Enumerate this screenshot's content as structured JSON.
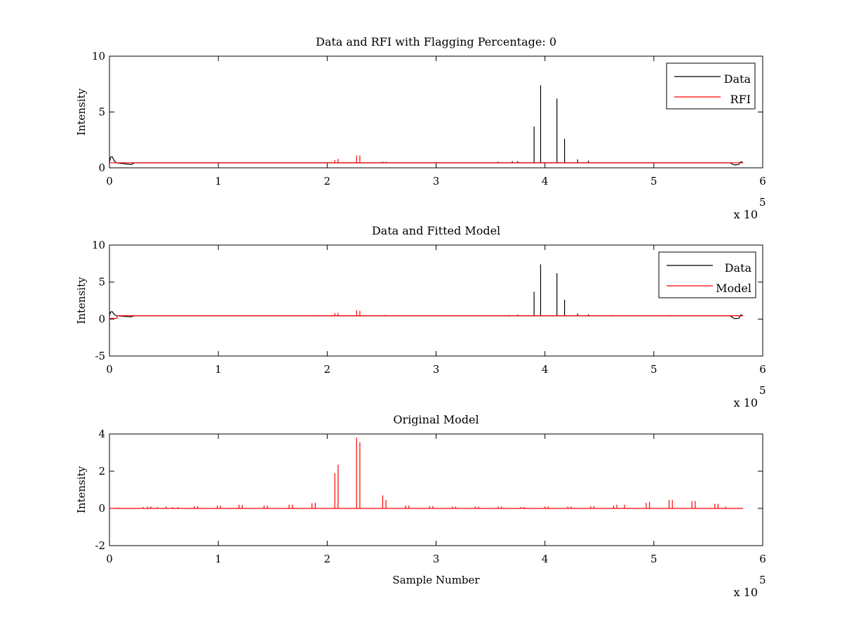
{
  "chart_data": [
    {
      "type": "line",
      "title": "Data and RFI with Flagging Percentage: 0",
      "xlabel": "",
      "ylabel": "Intensity",
      "xlim": [
        0,
        600000
      ],
      "ylim": [
        0,
        10
      ],
      "xticks": [
        "0",
        "1",
        "2",
        "3",
        "4",
        "5",
        "6"
      ],
      "yticks": [
        "0",
        "5",
        "10"
      ],
      "x_multiplier": "x 10",
      "x_exponent": "5",
      "legend": {
        "position": "top-right",
        "entries": [
          "Data",
          "RFI"
        ]
      },
      "baseline": 0.45,
      "series": [
        {
          "name": "Data",
          "color": "#000000",
          "spikes": [
            [
              390000,
              3.7
            ],
            [
              396000,
              7.4
            ],
            [
              411000,
              6.2
            ],
            [
              418000,
              2.6
            ],
            [
              430000,
              0.75
            ],
            [
              440000,
              0.65
            ],
            [
              370000,
              0.6
            ],
            [
              375000,
              0.6
            ],
            [
              357000,
              0.55
            ],
            [
              251000,
              0.55
            ],
            [
              456000,
              0.5
            ],
            [
              530000,
              0.5
            ]
          ],
          "start_bump": [
            [
              0,
              0.5
            ],
            [
              1000,
              0.95
            ],
            [
              2500,
              1.0
            ],
            [
              4000,
              0.7
            ],
            [
              6000,
              0.45
            ],
            [
              15000,
              0.35
            ],
            [
              20000,
              0.3
            ],
            [
              23000,
              0.45
            ],
            [
              26000,
              0.45
            ]
          ],
          "end_dip": [
            [
              570000,
              0.45
            ],
            [
              574000,
              0.25
            ],
            [
              578000,
              0.3
            ],
            [
              580000,
              0.55
            ],
            [
              582000,
              0.45
            ]
          ]
        },
        {
          "name": "RFI",
          "color": "#ff0000",
          "spikes": [
            [
              207000,
              0.7
            ],
            [
              210000,
              0.8
            ],
            [
              227000,
              1.1
            ],
            [
              230000,
              1.1
            ],
            [
              254000,
              0.55
            ],
            [
              300000,
              0.5
            ],
            [
              310000,
              0.5
            ]
          ]
        }
      ]
    },
    {
      "type": "line",
      "title": "Data and Fitted Model",
      "xlabel": "",
      "ylabel": "Intensity",
      "xlim": [
        0,
        600000
      ],
      "ylim": [
        -5,
        10
      ],
      "xticks": [
        "0",
        "1",
        "2",
        "3",
        "4",
        "5",
        "6"
      ],
      "yticks": [
        "-5",
        "0",
        "5",
        "10"
      ],
      "x_multiplier": "x 10",
      "x_exponent": "5",
      "legend": {
        "position": "top-right",
        "entries": [
          "Data",
          "Model"
        ]
      },
      "baseline": 0.45,
      "series": [
        {
          "name": "Data",
          "color": "#000000",
          "spikes": [
            [
              390000,
              3.7
            ],
            [
              396000,
              7.4
            ],
            [
              411000,
              6.2
            ],
            [
              418000,
              2.6
            ],
            [
              430000,
              0.75
            ],
            [
              440000,
              0.65
            ],
            [
              375000,
              0.6
            ],
            [
              367000,
              0.55
            ],
            [
              342000,
              0.5
            ],
            [
              328000,
              0.5
            ]
          ],
          "start_bump": [
            [
              0,
              0.5
            ],
            [
              1000,
              0.95
            ],
            [
              2500,
              1.0
            ],
            [
              4000,
              0.7
            ],
            [
              6000,
              0.45
            ],
            [
              15000,
              0.35
            ],
            [
              20000,
              0.3
            ],
            [
              23000,
              0.45
            ],
            [
              26000,
              0.45
            ]
          ],
          "end_dip": [
            [
              570000,
              0.45
            ],
            [
              574000,
              0.05
            ],
            [
              578000,
              0.1
            ],
            [
              580000,
              0.55
            ],
            [
              582000,
              0.45
            ]
          ]
        },
        {
          "name": "Model",
          "color": "#ff0000",
          "start_step": [
            [
              0,
              0.1
            ],
            [
              7000,
              0.1
            ],
            [
              7000,
              0.45
            ]
          ],
          "spikes": [
            [
              207000,
              0.8
            ],
            [
              210000,
              0.85
            ],
            [
              227000,
              1.2
            ],
            [
              230000,
              1.1
            ],
            [
              188000,
              0.55
            ],
            [
              168000,
              0.5
            ],
            [
              253000,
              0.55
            ],
            [
              273000,
              0.5
            ],
            [
              294000,
              0.5
            ],
            [
              315000,
              0.5
            ],
            [
              336000,
              0.5
            ],
            [
              357000,
              0.5
            ],
            [
              400000,
              0.5
            ],
            [
              421000,
              0.5
            ],
            [
              462000,
              0.55
            ],
            [
              484000,
              0.5
            ],
            [
              515000,
              0.55
            ],
            [
              537000,
              0.5
            ],
            [
              556000,
              0.5
            ]
          ]
        }
      ]
    },
    {
      "type": "line",
      "title": "Original Model",
      "xlabel": "Sample Number",
      "ylabel": "Intensity",
      "xlim": [
        0,
        600000
      ],
      "ylim": [
        -2,
        4
      ],
      "xticks": [
        "0",
        "1",
        "2",
        "3",
        "4",
        "5",
        "6"
      ],
      "yticks": [
        "-2",
        "0",
        "2",
        "4"
      ],
      "x_multiplier": "x 10",
      "x_exponent": "5",
      "legend": null,
      "baseline": 0.0,
      "series": [
        {
          "name": "",
          "color": "#ff0000",
          "spikes": [
            [
              8000,
              0.05
            ],
            [
              31000,
              0.08
            ],
            [
              35000,
              0.1
            ],
            [
              38000,
              0.1
            ],
            [
              44000,
              0.08
            ],
            [
              52000,
              0.1
            ],
            [
              58000,
              0.08
            ],
            [
              63000,
              0.08
            ],
            [
              78000,
              0.12
            ],
            [
              81000,
              0.12
            ],
            [
              99000,
              0.15
            ],
            [
              102000,
              0.15
            ],
            [
              119000,
              0.2
            ],
            [
              122000,
              0.18
            ],
            [
              142000,
              0.15
            ],
            [
              145000,
              0.15
            ],
            [
              165000,
              0.2
            ],
            [
              168000,
              0.2
            ],
            [
              186000,
              0.28
            ],
            [
              189000,
              0.3
            ],
            [
              207000,
              1.9
            ],
            [
              210000,
              2.35
            ],
            [
              227000,
              3.8
            ],
            [
              230000,
              3.55
            ],
            [
              251000,
              0.7
            ],
            [
              254000,
              0.45
            ],
            [
              272000,
              0.15
            ],
            [
              275000,
              0.15
            ],
            [
              294000,
              0.12
            ],
            [
              297000,
              0.12
            ],
            [
              315000,
              0.1
            ],
            [
              318000,
              0.1
            ],
            [
              336000,
              0.1
            ],
            [
              339000,
              0.1
            ],
            [
              357000,
              0.1
            ],
            [
              360000,
              0.1
            ],
            [
              378000,
              0.08
            ],
            [
              381000,
              0.08
            ],
            [
              400000,
              0.1
            ],
            [
              403000,
              0.1
            ],
            [
              421000,
              0.1
            ],
            [
              424000,
              0.1
            ],
            [
              442000,
              0.12
            ],
            [
              445000,
              0.12
            ],
            [
              463000,
              0.15
            ],
            [
              466000,
              0.2
            ],
            [
              473000,
              0.2
            ],
            [
              493000,
              0.3
            ],
            [
              496000,
              0.35
            ],
            [
              514000,
              0.45
            ],
            [
              517000,
              0.45
            ],
            [
              535000,
              0.4
            ],
            [
              538000,
              0.4
            ],
            [
              556000,
              0.25
            ],
            [
              559000,
              0.25
            ],
            [
              566000,
              0.1
            ]
          ]
        }
      ]
    }
  ]
}
